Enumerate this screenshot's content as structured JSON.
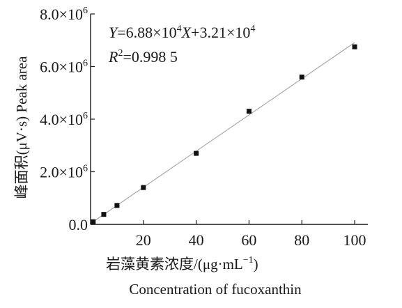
{
  "chart_data": {
    "type": "scatter",
    "xlabel_cn": "岩藻黄素浓度/(μg·mL",
    "xlabel_cn_exp": "−1",
    "xlabel_cn_tail": ")",
    "xlabel_en": "Concentration of fucoxanthin",
    "ylabel": "峰面积(μV·s) Peak area",
    "x_ticks": [
      "20",
      "40",
      "60",
      "80",
      "100"
    ],
    "x_tick_values": [
      20,
      40,
      60,
      80,
      100
    ],
    "y_ticks": [
      {
        "value": 0,
        "mantissa": "0.0",
        "exp": ""
      },
      {
        "value": 2000000,
        "mantissa": "2.0×10",
        "exp": "6"
      },
      {
        "value": 4000000,
        "mantissa": "4.0×10",
        "exp": "6"
      },
      {
        "value": 6000000,
        "mantissa": "6.0×10",
        "exp": "6"
      },
      {
        "value": 8000000,
        "mantissa": "8.0×10",
        "exp": "6"
      }
    ],
    "xlim": [
      0,
      105
    ],
    "ylim": [
      0,
      8000000
    ],
    "series": [
      {
        "x": [
          1,
          5,
          10,
          20,
          40,
          60,
          80,
          100
        ],
        "y": [
          100000,
          380000,
          720000,
          1400000,
          2700000,
          4300000,
          5600000,
          6750000
        ],
        "marker": "square",
        "color": "#111111"
      }
    ],
    "fit_line": {
      "slope": 68800,
      "intercept": 32100,
      "color": "#9a9a9a"
    },
    "equation": {
      "y_var": "Y",
      "eq_part1": "=6.88×10",
      "exp1": "4",
      "x_var": "X",
      "eq_part2": "+3.21×10",
      "exp2": "4",
      "r_var": "R",
      "r_exp": "2",
      "r_value": "=0.998 5"
    }
  }
}
